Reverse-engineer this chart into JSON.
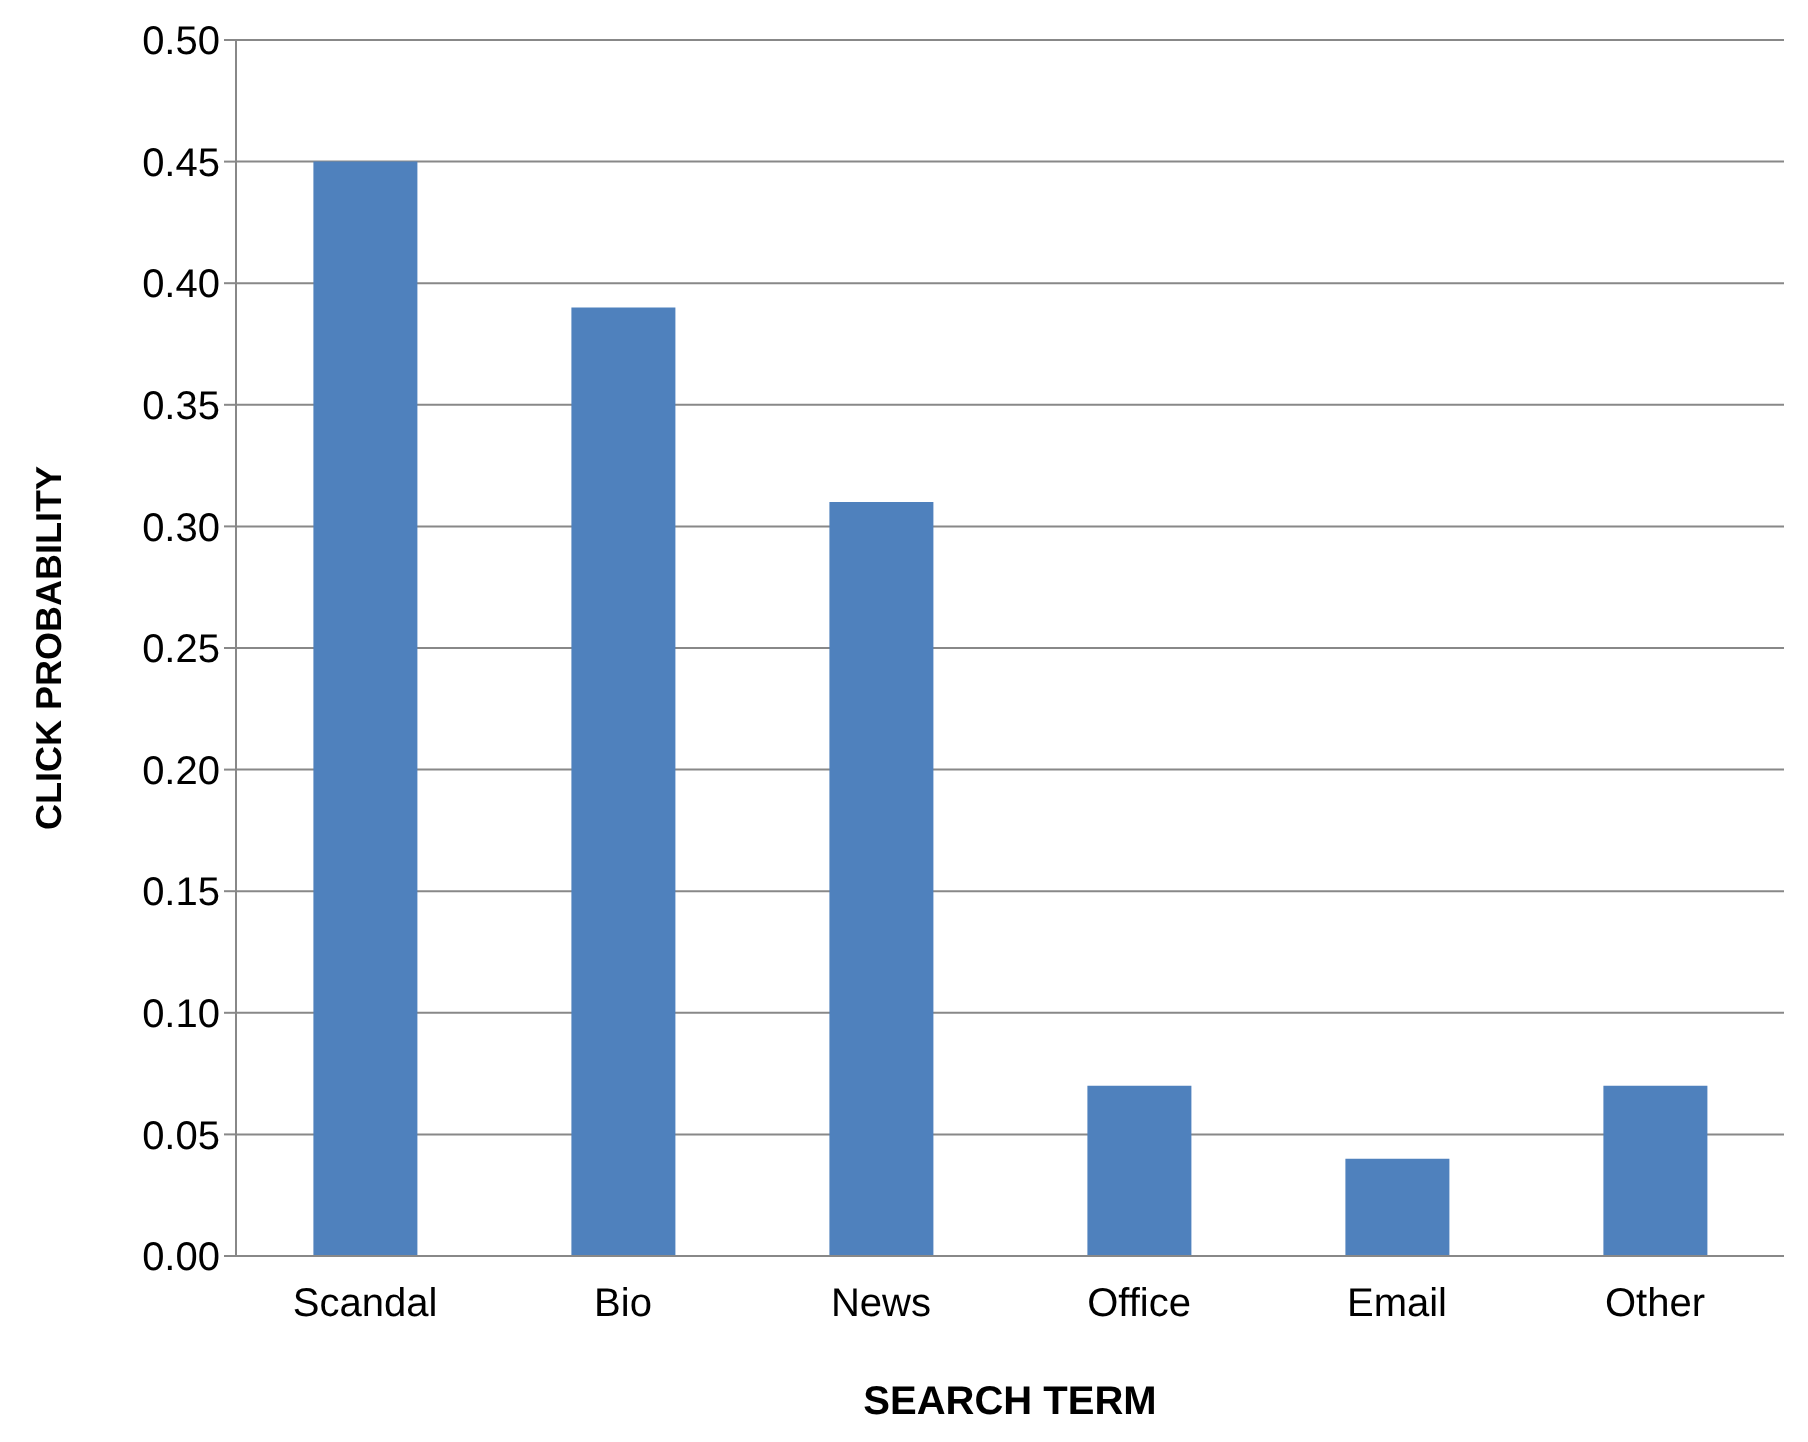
{
  "chart_data": {
    "type": "bar",
    "xlabel": "SEARCH TERM",
    "ylabel": "CLICK PROBABILITY",
    "categories": [
      "Scandal",
      "Bio",
      "News",
      "Office",
      "Email",
      "Other"
    ],
    "values": [
      0.45,
      0.39,
      0.31,
      0.07,
      0.04,
      0.07
    ],
    "color": "#4f81bd",
    "ylim": [
      0,
      0.5
    ],
    "yticks": [
      {
        "value": 0,
        "label": "0.00"
      },
      {
        "value": 0.05,
        "label": "0.05"
      },
      {
        "value": 0.1,
        "label": "0.10"
      },
      {
        "value": 0.15,
        "label": "0.15"
      },
      {
        "value": 0.2,
        "label": "0.20"
      },
      {
        "value": 0.25,
        "label": "0.25"
      },
      {
        "value": 0.3,
        "label": "0.30"
      },
      {
        "value": 0.35,
        "label": "0.35"
      },
      {
        "value": 0.4,
        "label": "0.40"
      },
      {
        "value": 0.45,
        "label": "0.45"
      },
      {
        "value": 0.5,
        "label": "0.50"
      }
    ],
    "grid": "y"
  }
}
